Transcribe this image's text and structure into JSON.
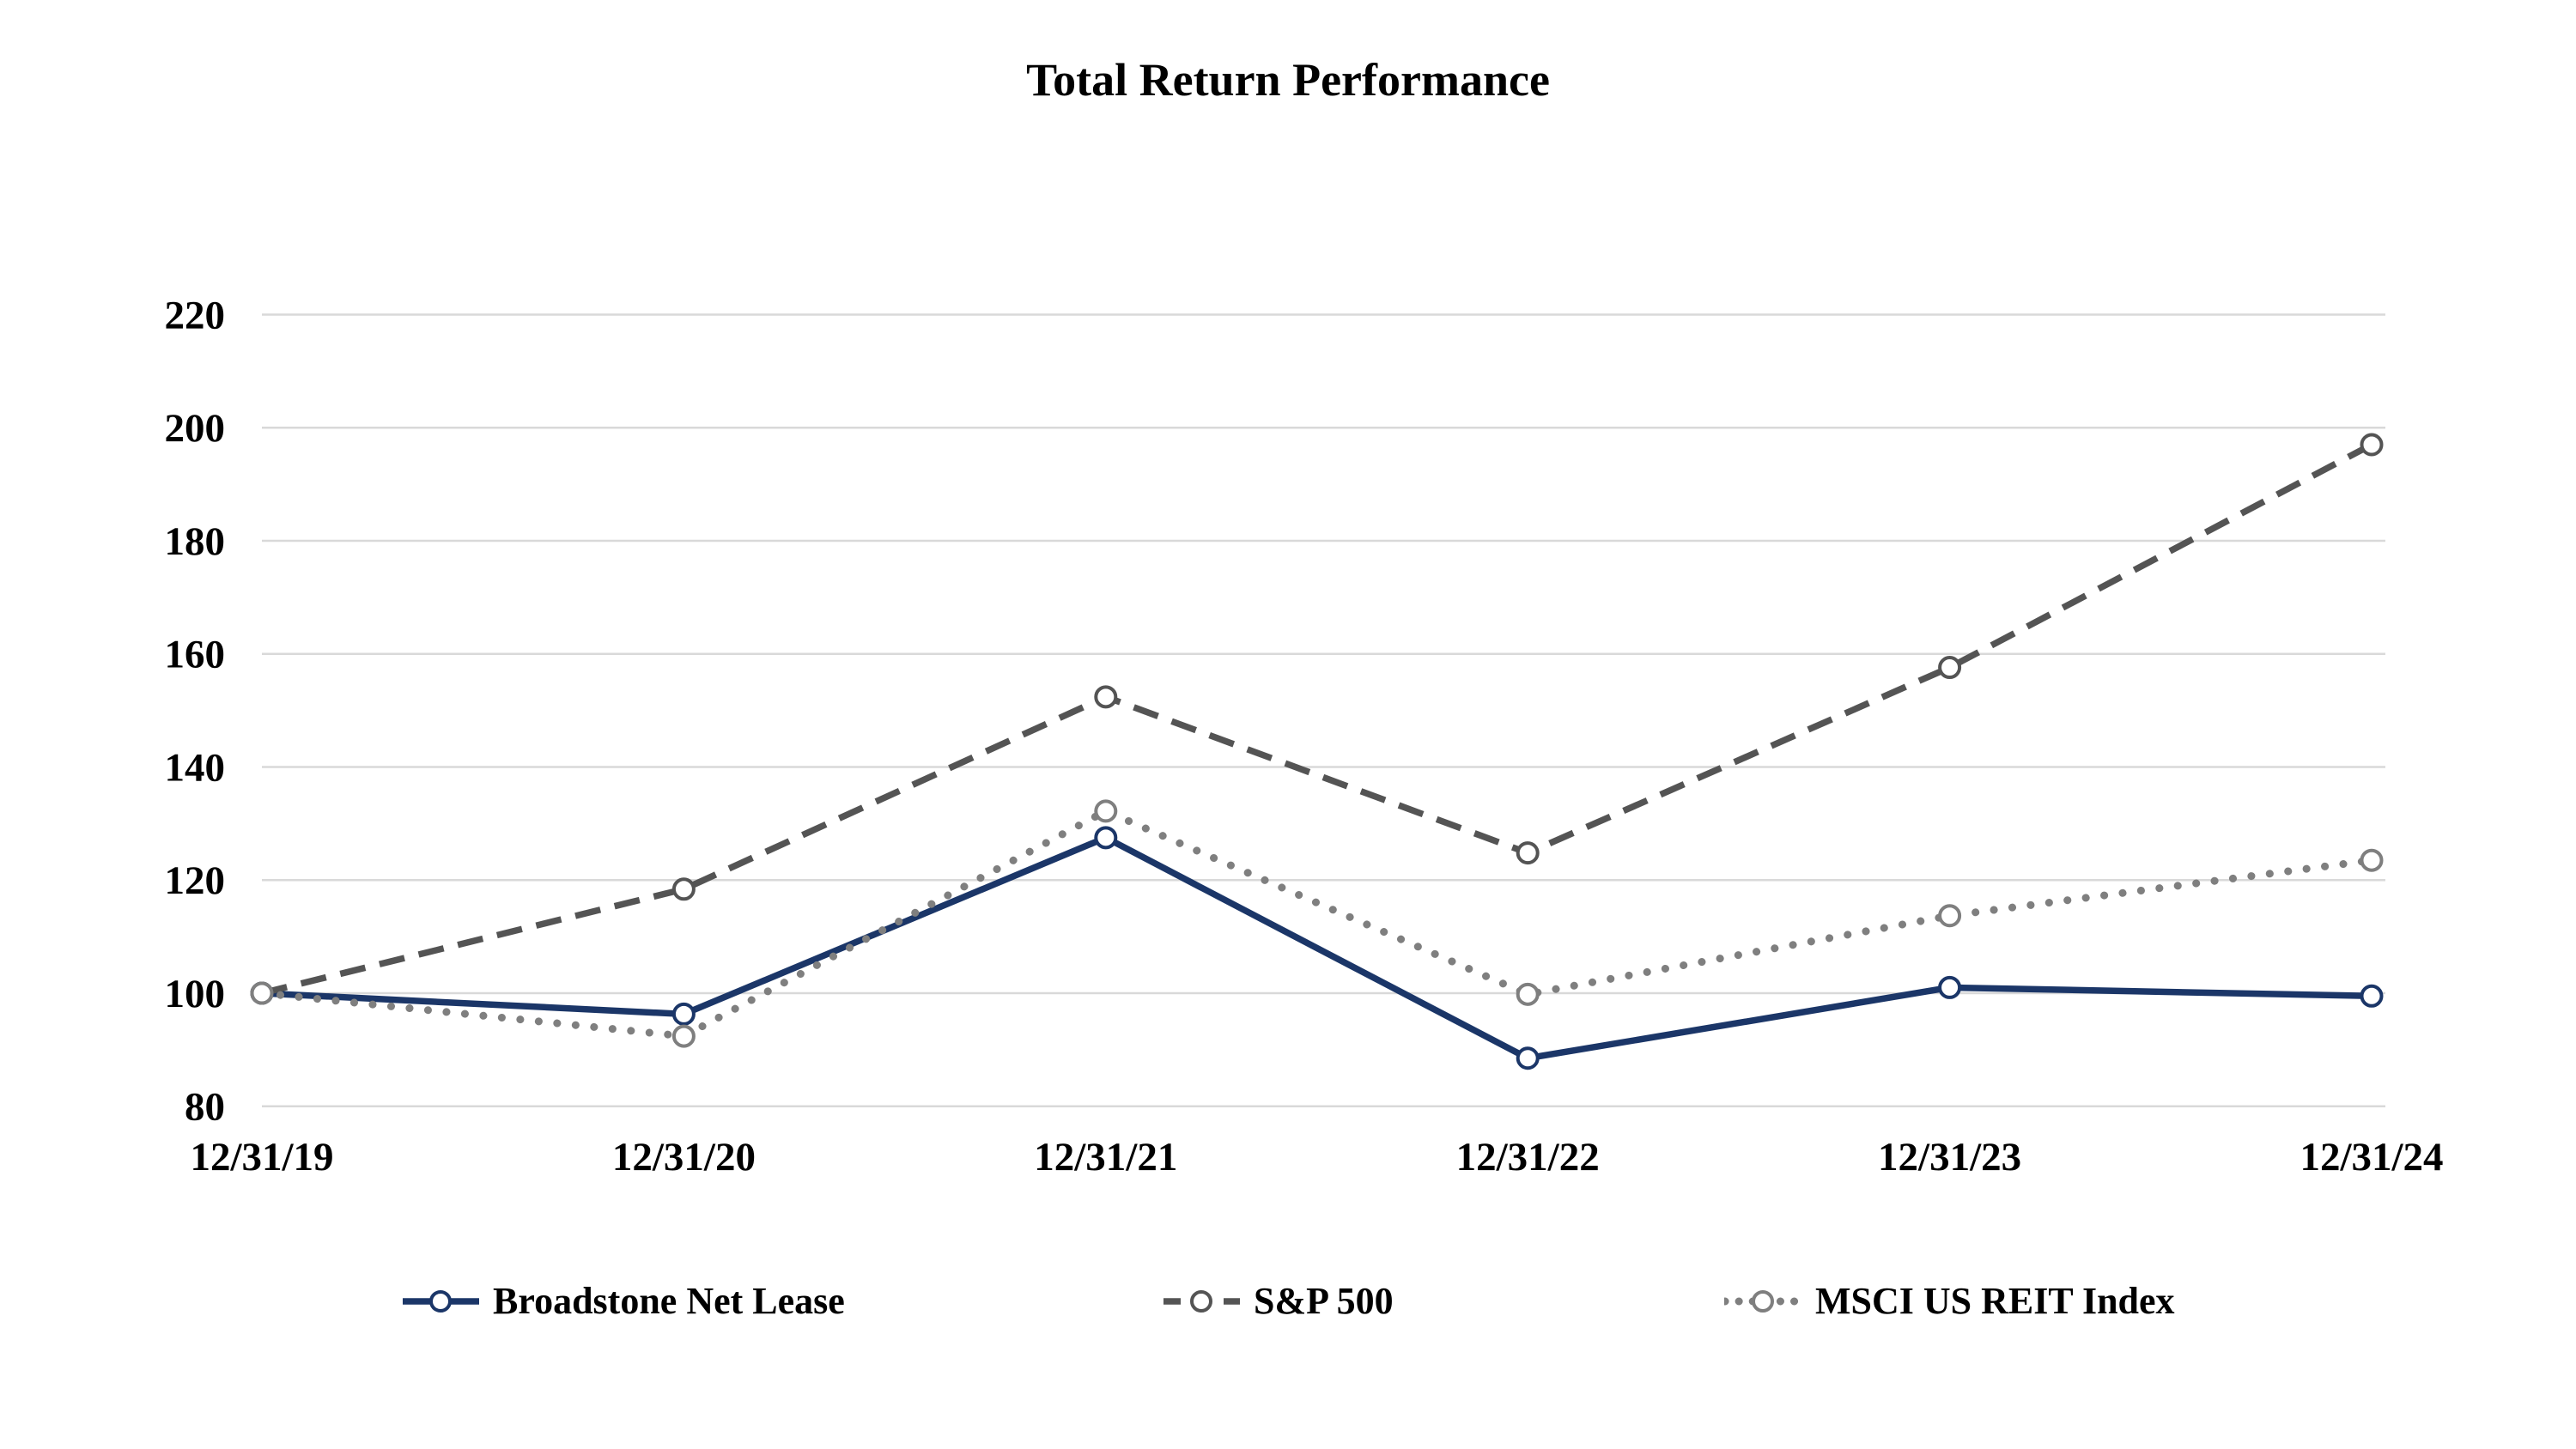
{
  "title": "Total Return Performance",
  "chart_data": {
    "type": "line",
    "categories": [
      "12/31/19",
      "12/31/20",
      "12/31/21",
      "12/31/22",
      "12/31/23",
      "12/31/24"
    ],
    "series": [
      {
        "name": "Broadstone Net Lease",
        "values": [
          100,
          96.3,
          127.5,
          88.5,
          101.0,
          99.5
        ],
        "color": "#1B3668",
        "style": "solid"
      },
      {
        "name": "S&P 500",
        "values": [
          100,
          118.4,
          152.4,
          124.8,
          157.6,
          197.0
        ],
        "color": "#545454",
        "style": "dashed"
      },
      {
        "name": "MSCI US REIT Index",
        "values": [
          100,
          92.4,
          132.2,
          99.8,
          113.7,
          123.5
        ],
        "color": "#7F7F7F",
        "style": "dotted"
      }
    ],
    "ylim": [
      80,
      220
    ],
    "ytick_step": 20,
    "yticks": [
      80,
      100,
      120,
      140,
      160,
      180,
      200,
      220
    ],
    "grid": "horizontal",
    "gridline_color": "#D9D9D9",
    "marker": "open-circle",
    "legend_position": "bottom",
    "xlabel": "",
    "ylabel": ""
  }
}
